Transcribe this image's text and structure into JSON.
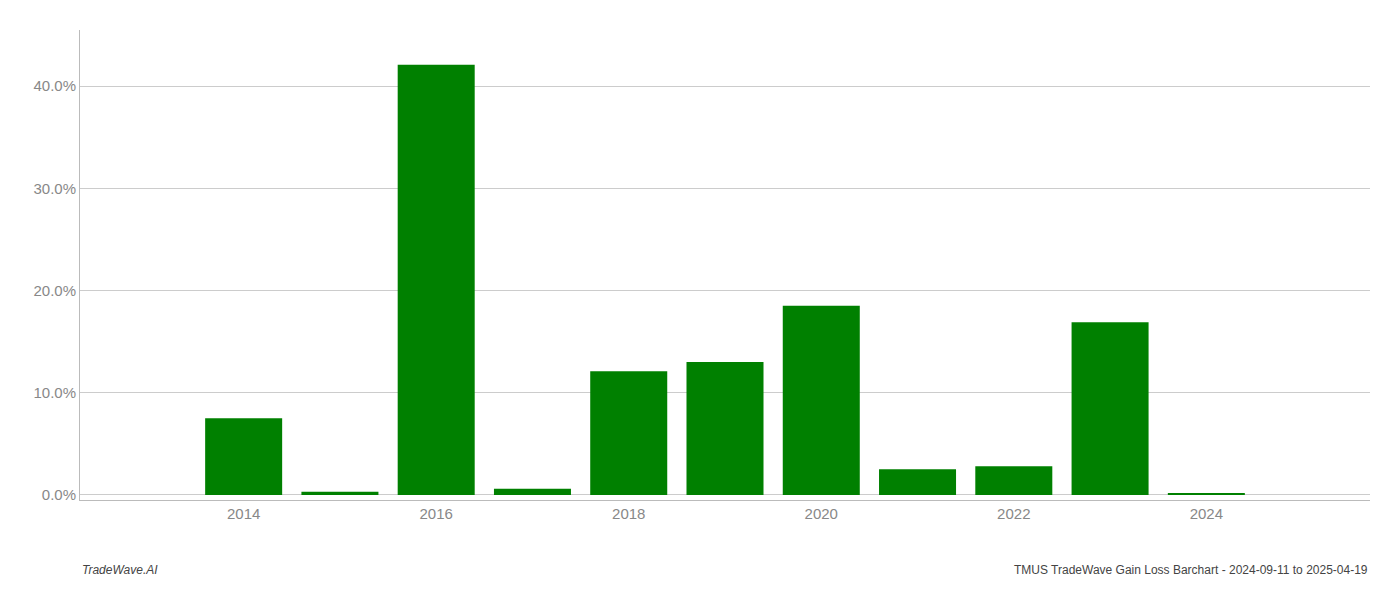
{
  "chart_data": {
    "type": "bar",
    "x": [
      2013,
      2014,
      2015,
      2016,
      2017,
      2018,
      2019,
      2020,
      2021,
      2022,
      2023,
      2024
    ],
    "values": [
      0.0,
      0.075,
      0.003,
      0.421,
      0.006,
      0.121,
      0.13,
      0.185,
      0.025,
      0.028,
      0.169,
      0.001
    ],
    "color": "#008000",
    "xlim": [
      2012.3,
      2025.7
    ],
    "xticks": [
      2014,
      2016,
      2018,
      2020,
      2022,
      2024
    ],
    "ylim": [
      -0.005,
      0.455
    ],
    "yticks": [
      {
        "value": 0.0,
        "label": "0.0%"
      },
      {
        "value": 0.1,
        "label": "10.0%"
      },
      {
        "value": 0.2,
        "label": "20.0%"
      },
      {
        "value": 0.3,
        "label": "30.0%"
      },
      {
        "value": 0.4,
        "label": "40.0%"
      }
    ],
    "grid": true,
    "annotations": [
      "TradeWave.AI",
      "TMUS TradeWave Gain Loss Barchart - 2024-09-11 to 2025-04-19"
    ]
  }
}
